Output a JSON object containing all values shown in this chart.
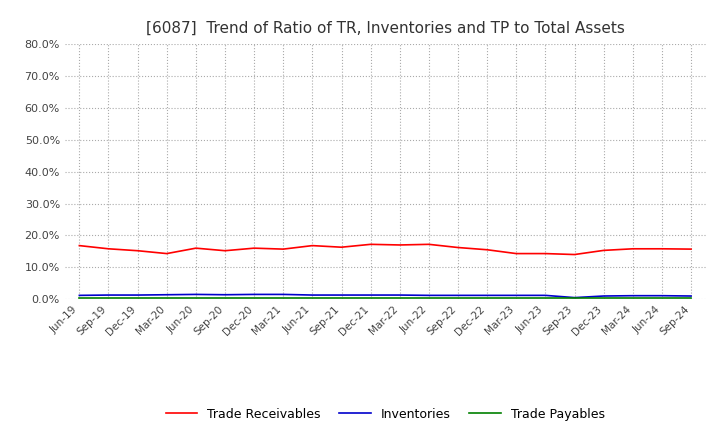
{
  "title": "[6087]  Trend of Ratio of TR, Inventories and TP to Total Assets",
  "title_fontsize": 11,
  "ylim": [
    0.0,
    0.8
  ],
  "ytick_values": [
    0.0,
    0.1,
    0.2,
    0.3,
    0.4,
    0.5,
    0.6,
    0.7,
    0.8
  ],
  "x_labels": [
    "Jun-19",
    "Sep-19",
    "Dec-19",
    "Mar-20",
    "Jun-20",
    "Sep-20",
    "Dec-20",
    "Mar-21",
    "Jun-21",
    "Sep-21",
    "Dec-21",
    "Mar-22",
    "Jun-22",
    "Sep-22",
    "Dec-22",
    "Mar-23",
    "Jun-23",
    "Sep-23",
    "Dec-23",
    "Mar-24",
    "Jun-24",
    "Sep-24"
  ],
  "trade_receivables": [
    0.168,
    0.158,
    0.152,
    0.143,
    0.16,
    0.152,
    0.16,
    0.157,
    0.168,
    0.163,
    0.172,
    0.17,
    0.172,
    0.162,
    0.155,
    0.143,
    0.143,
    0.14,
    0.153,
    0.158,
    0.158,
    0.157
  ],
  "inventories": [
    0.012,
    0.013,
    0.013,
    0.014,
    0.015,
    0.014,
    0.015,
    0.015,
    0.013,
    0.013,
    0.013,
    0.013,
    0.012,
    0.012,
    0.012,
    0.012,
    0.012,
    0.005,
    0.01,
    0.011,
    0.011,
    0.01
  ],
  "trade_payables": [
    0.004,
    0.004,
    0.004,
    0.004,
    0.004,
    0.004,
    0.004,
    0.004,
    0.004,
    0.004,
    0.004,
    0.004,
    0.004,
    0.004,
    0.004,
    0.004,
    0.004,
    0.004,
    0.004,
    0.004,
    0.004,
    0.004
  ],
  "tr_color": "#ff0000",
  "inv_color": "#0000cc",
  "tp_color": "#008000",
  "bg_color": "#ffffff",
  "plot_bg_color": "#ffffff",
  "grid_color": "#aaaaaa",
  "legend_labels": [
    "Trade Receivables",
    "Inventories",
    "Trade Payables"
  ]
}
